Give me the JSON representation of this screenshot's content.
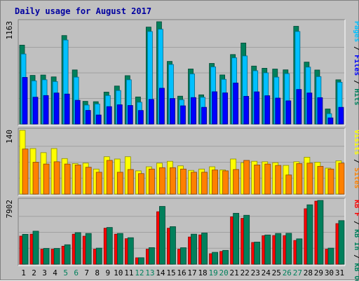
{
  "chart_data": {
    "type": "bar",
    "title": "Daily usage for August 2017",
    "colors": {
      "hits": "#00805c",
      "files": "#00c0ff",
      "pages": "#0000ff",
      "visits": "#ffff00",
      "sites": "#ff8000",
      "kb_in": "#00805c",
      "kb_out": "#ff0000"
    },
    "days": [
      {
        "label": "1",
        "weekend": false
      },
      {
        "label": "2",
        "weekend": false
      },
      {
        "label": "3",
        "weekend": false
      },
      {
        "label": "4",
        "weekend": false
      },
      {
        "label": "5",
        "weekend": true
      },
      {
        "label": "6",
        "weekend": true
      },
      {
        "label": "7",
        "weekend": false
      },
      {
        "label": "8",
        "weekend": false
      },
      {
        "label": "9",
        "weekend": false
      },
      {
        "label": "10",
        "weekend": false
      },
      {
        "label": "11",
        "weekend": false
      },
      {
        "label": "12",
        "weekend": true
      },
      {
        "label": "13",
        "weekend": true
      },
      {
        "label": "14",
        "weekend": false
      },
      {
        "label": "15",
        "weekend": false
      },
      {
        "label": "16",
        "weekend": false
      },
      {
        "label": "17",
        "weekend": false
      },
      {
        "label": "18",
        "weekend": false
      },
      {
        "label": "19",
        "weekend": true
      },
      {
        "label": "20",
        "weekend": true
      },
      {
        "label": "21",
        "weekend": false
      },
      {
        "label": "22",
        "weekend": false
      },
      {
        "label": "23",
        "weekend": false
      },
      {
        "label": "24",
        "weekend": false
      },
      {
        "label": "25",
        "weekend": false
      },
      {
        "label": "26",
        "weekend": true
      },
      {
        "label": "27",
        "weekend": true
      },
      {
        "label": "28",
        "weekend": false
      },
      {
        "label": "29",
        "weekend": false
      },
      {
        "label": "30",
        "weekend": false
      },
      {
        "label": "31",
        "weekend": false
      }
    ],
    "panels": [
      {
        "key": "top",
        "max_label": "1163",
        "ymax": 1163,
        "side_legend": [
          {
            "text": "Pages",
            "color": "#00c0ff"
          },
          {
            "text": " / ",
            "color": "#000000"
          },
          {
            "text": "Files",
            "color": "#0000ff"
          },
          {
            "text": " / ",
            "color": "#000000"
          },
          {
            "text": "Hits",
            "color": "#00805c"
          }
        ],
        "series": [
          {
            "name": "Hits",
            "color": "#00805c",
            "values": [
              897,
              553,
              557,
              536,
              1006,
              615,
              258,
              254,
              363,
              432,
              550,
              308,
              1102,
              1163,
              712,
              317,
              626,
              332,
              689,
              558,
              790,
              921,
              659,
              634,
              625,
              616,
              1111,
              704,
              614,
              171,
              503
            ]
          },
          {
            "name": "Files",
            "color": "#00c0ff",
            "values": [
              796,
              491,
              503,
              483,
              955,
              533,
              216,
              228,
              324,
              381,
              503,
              248,
              1052,
              1078,
              677,
              276,
              570,
              304,
              650,
              508,
              753,
              774,
              606,
              582,
              533,
              573,
              1052,
              647,
              539,
              118,
              475
            ]
          },
          {
            "name": "Pages",
            "color": "#0000ff",
            "values": [
              530,
              305,
              324,
              353,
              341,
              270,
              155,
              103,
              198,
              219,
              211,
              154,
              280,
              407,
              290,
              207,
              301,
              190,
              367,
              354,
              466,
              315,
              366,
              322,
              295,
              264,
              393,
              353,
              300,
              70,
              190
            ]
          }
        ]
      },
      {
        "key": "mid",
        "max_label": "140",
        "ymax": 140,
        "side_legend": [
          {
            "text": "Visits",
            "color": "#ffff00"
          },
          {
            "text": " / ",
            "color": "#000000"
          },
          {
            "text": "Sites",
            "color": "#ff8000"
          }
        ],
        "series": [
          {
            "name": "Visits",
            "color": "#ffff00",
            "values": [
              140,
              100,
              91,
              100,
              78,
              67,
              68,
              55,
              82,
              77,
              82,
              51,
              60,
              68,
              72,
              62,
              52,
              55,
              60,
              53,
              77,
              69,
              72,
              71,
              69,
              63,
              71,
              81,
              70,
              57,
              73
            ]
          },
          {
            "name": "Sites",
            "color": "#ff8000",
            "values": [
              99,
              70,
              66,
              71,
              66,
              64,
              59,
              48,
              74,
              48,
              54,
              45,
              55,
              58,
              58,
              55,
              48,
              48,
              53,
              51,
              54,
              74,
              64,
              66,
              63,
              42,
              67,
              68,
              61,
              55,
              68
            ]
          }
        ]
      },
      {
        "key": "bot",
        "max_label": "7902",
        "ymax": 7902,
        "side_legend": [
          {
            "text": "KB F",
            "color": "#ff0000"
          },
          {
            "text": " / ",
            "color": "#000000"
          },
          {
            "text": "KB In",
            "color": "#00805c"
          },
          {
            "text": " / ",
            "color": "#000000"
          },
          {
            "text": "KB Out",
            "color": "#00805c"
          }
        ],
        "series": [
          {
            "name": "KB Out",
            "color": "#ff0000",
            "values": [
              3480,
              3720,
              1860,
              1860,
              2230,
              3720,
              3470,
              1860,
              4460,
              3720,
              3160,
              790,
              1860,
              6500,
              4460,
              1860,
              3370,
              3630,
              1300,
              1580,
              5870,
              5680,
              2690,
              3530,
              3550,
              3540,
              2940,
              6870,
              7810,
              1860,
              5030
            ]
          },
          {
            "name": "KB In",
            "color": "#00805c",
            "values": [
              3700,
              4090,
              1950,
              1950,
              2410,
              3910,
              3810,
              1990,
              4550,
              3810,
              3280,
              800,
              2050,
              7160,
              4650,
              2040,
              3720,
              3860,
              1470,
              1710,
              6310,
              6060,
              2740,
              3620,
              3810,
              3830,
              3140,
              7360,
              7902,
              1990,
              5400
            ]
          }
        ]
      }
    ]
  }
}
